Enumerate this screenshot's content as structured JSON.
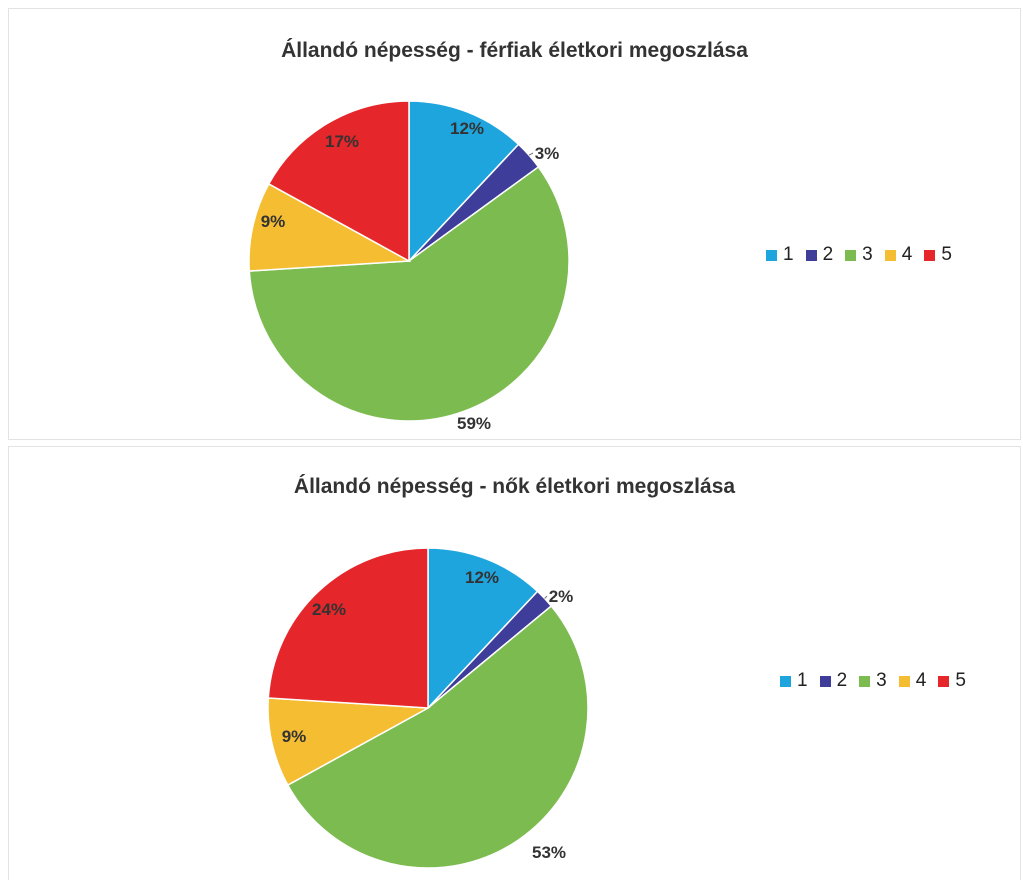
{
  "chart_data": [
    {
      "type": "pie",
      "title": "Állandó népesség - férfiak életkori megoszlása",
      "categories": [
        "1",
        "2",
        "3",
        "4",
        "5"
      ],
      "values": [
        12,
        3,
        59,
        9,
        17
      ],
      "labels": [
        "12%",
        "3%",
        "59%",
        "9%",
        "17%"
      ],
      "colors": [
        "#1fa5de",
        "#3f3d9a",
        "#7cbb4f",
        "#f5bd32",
        "#e5262a"
      ],
      "legend": "right"
    },
    {
      "type": "pie",
      "title": "Állandó népesség - nők életkori megoszlása",
      "categories": [
        "1",
        "2",
        "3",
        "4",
        "5"
      ],
      "values": [
        12,
        2,
        53,
        9,
        24
      ],
      "labels": [
        "12%",
        "2%",
        "53%",
        "9%",
        "24%"
      ],
      "colors": [
        "#1fa5de",
        "#3f3d9a",
        "#7cbb4f",
        "#f5bd32",
        "#e5262a"
      ],
      "legend": "right"
    }
  ]
}
